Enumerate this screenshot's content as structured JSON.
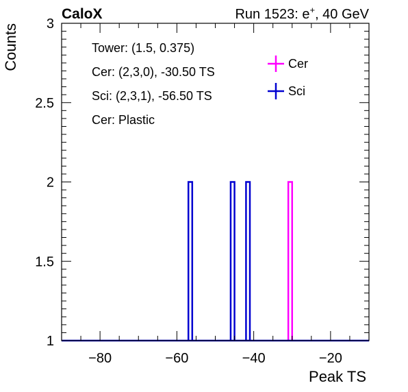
{
  "header": {
    "experiment": "CaloX",
    "run_info_prefix": "Run 1523: e",
    "run_info_sup": "+",
    "run_info_suffix": ", 40 GeV"
  },
  "annotations": [
    "Tower: (1.5, 0.375)",
    "Cer: (2,3,0), -30.50 TS",
    "Sci: (2,3,1), -56.50 TS",
    "Cer: Plastic"
  ],
  "colors": {
    "Cer": "#ff00ff",
    "Sci": "#0000d0",
    "axis": "#000000"
  },
  "chart_data": {
    "type": "histogram",
    "xlabel": "Peak TS",
    "ylabel": "Counts",
    "xlim": [
      -90,
      -10
    ],
    "ylim": [
      1,
      3
    ],
    "x_ticks": [
      -80,
      -60,
      -40,
      -20
    ],
    "x_tick_labels": [
      "−80",
      "−60",
      "−40",
      "−20"
    ],
    "y_ticks": [
      1,
      1.5,
      2,
      2.5,
      3
    ],
    "y_tick_labels": [
      "1",
      "1.5",
      "2",
      "2.5",
      "3"
    ],
    "grid": false,
    "legend_position": "top-right",
    "baseline": 1,
    "series": [
      {
        "name": "Cer",
        "bins": [
          {
            "x_low": -31,
            "x_high": -30,
            "count": 2
          }
        ]
      },
      {
        "name": "Sci",
        "bins": [
          {
            "x_low": -57,
            "x_high": -56,
            "count": 2
          },
          {
            "x_low": -46,
            "x_high": -45,
            "count": 2
          },
          {
            "x_low": -42,
            "x_high": -41,
            "count": 2
          }
        ]
      }
    ]
  }
}
